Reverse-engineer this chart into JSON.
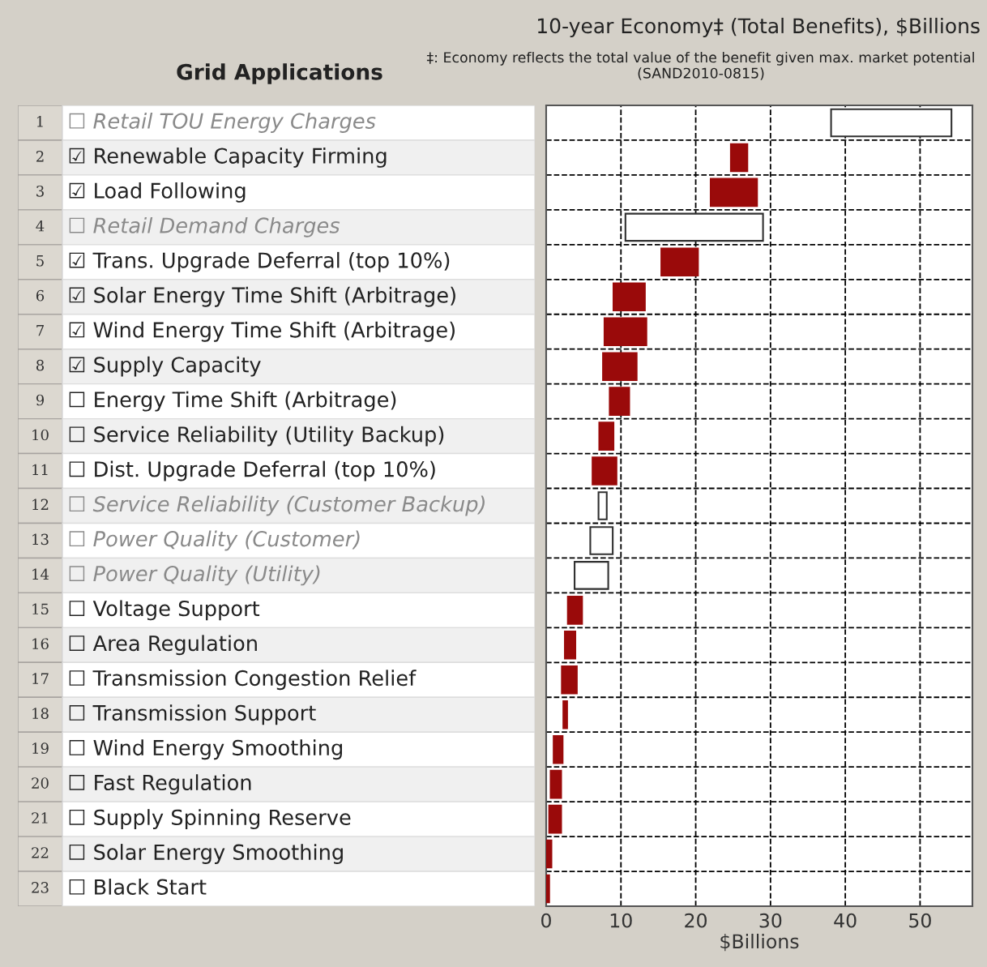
{
  "chart_data": {
    "type": "bar",
    "orientation": "horizontal",
    "title": "10-year Economy‡ (Total Benefits), $Billions",
    "subtitle": "‡: Economy reflects the total value of the benefit given max. market potential (SAND2010-0815)",
    "xlabel": "$Billions",
    "annotations": [
      "Grid Applications",
      "1",
      "2",
      "3",
      "4",
      "5",
      "6",
      "7",
      "8",
      "9",
      "10",
      "11",
      "12",
      "13",
      "14",
      "15",
      "16",
      "17",
      "18",
      "19",
      "20",
      "21",
      "22",
      "23"
    ],
    "categories": [
      "☐ Retail TOU Energy Charges",
      "☑ Renewable Capacity Firming",
      "☑ Load Following",
      "☐ Retail Demand Charges",
      "☑ Trans. Upgrade Deferral (top 10%)",
      "☑ Solar Energy Time Shift (Arbitrage)",
      "☑ Wind Energy Time Shift (Arbitrage)",
      "☑ Supply Capacity",
      "☐ Energy Time Shift (Arbitrage)",
      "☐ Service Reliability (Utility Backup)",
      "☐ Dist. Upgrade Deferral (top 10%)",
      "☐ Service Reliability (Customer Backup)",
      "☐ Power Quality (Customer)",
      "☐ Power Quality (Utility)",
      "☐ Voltage Support",
      "☐ Area Regulation",
      "☐ Transmission Congestion Relief",
      "☐ Transmission Support",
      "☐ Wind Energy Smoothing",
      "☐ Fast Regulation",
      "☐ Supply Spinning Reserve",
      "☐ Solar Energy Smoothing",
      "☐ Black Start"
    ],
    "base": [
      38.1,
      24.7,
      22.0,
      10.6,
      15.4,
      9.0,
      7.8,
      7.6,
      8.5,
      7.1,
      6.2,
      7.0,
      5.9,
      3.8,
      2.9,
      2.5,
      2.1,
      2.3,
      1.0,
      0.6,
      0.4,
      0,
      0
    ],
    "values": [
      16.1,
      2.2,
      6.2,
      18.4,
      4.9,
      4.2,
      5.6,
      4.5,
      2.6,
      1.9,
      3.2,
      1.1,
      3.0,
      4.5,
      1.9,
      1.4,
      2.0,
      0.5,
      1.2,
      1.4,
      1.6,
      0.7,
      0.4
    ],
    "colors": [
      "#ffffff",
      "#9a0a0a",
      "#9a0a0a",
      "#ffffff",
      "#9a0a0a",
      "#9a0a0a",
      "#9a0a0a",
      "#9a0a0a",
      "#9a0a0a",
      "#9a0a0a",
      "#9a0a0a",
      "#ffffff",
      "#ffffff",
      "#ffffff",
      "#9a0a0a",
      "#9a0a0a",
      "#9a0a0a",
      "#9a0a0a",
      "#9a0a0a",
      "#9a0a0a",
      "#9a0a0a",
      "#9a0a0a",
      "#9a0a0a"
    ],
    "xlim": [
      0,
      57
    ],
    "xticks": [
      0,
      10,
      20,
      30,
      40,
      50
    ],
    "grid": true,
    "line_style": "dashed"
  }
}
